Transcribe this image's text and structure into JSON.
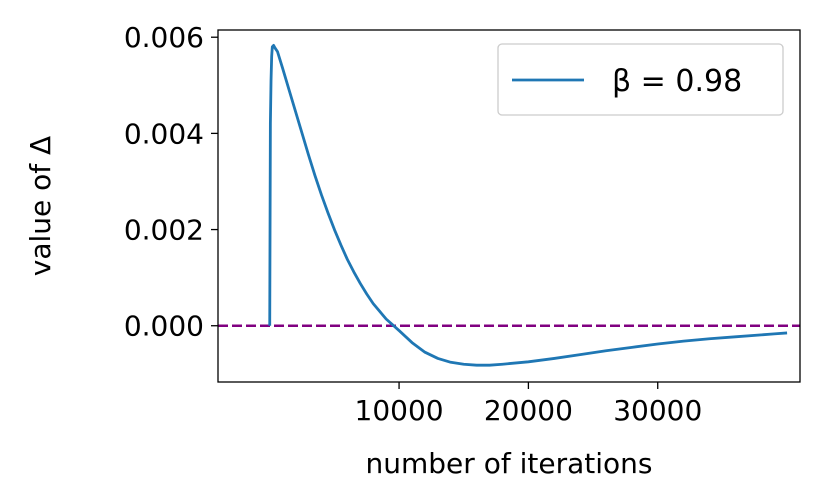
{
  "chart_data": {
    "type": "line",
    "title": "",
    "xlabel": "number of iterations",
    "ylabel": "value of Δ",
    "xlim": [
      -4000,
      41000
    ],
    "ylim": [
      -0.00117,
      0.00615
    ],
    "xticks": [
      10000,
      20000,
      30000
    ],
    "xtick_labels": [
      "10000",
      "20000",
      "30000"
    ],
    "yticks": [
      0.0,
      0.002,
      0.004,
      0.006
    ],
    "ytick_labels": [
      "0.000",
      "0.002",
      "0.004",
      "0.006"
    ],
    "grid": false,
    "legend": {
      "position": "top-right",
      "entries": [
        "β = 0.98"
      ]
    },
    "reference_lines": [
      {
        "axis": "y",
        "value": 0.0,
        "style": "dashed",
        "color": "#800080"
      }
    ],
    "series": [
      {
        "name": "β = 0.98",
        "color": "#1f77b4",
        "x": [
          0,
          50,
          100,
          150,
          200,
          300,
          400,
          600,
          1000,
          1500,
          2000,
          2500,
          3000,
          3500,
          4000,
          4500,
          5000,
          5500,
          6000,
          6500,
          7000,
          7500,
          8000,
          9000,
          10000,
          11000,
          12000,
          13000,
          14000,
          15000,
          16000,
          17000,
          18000,
          20000,
          22000,
          24000,
          26000,
          28000,
          30000,
          32000,
          34000,
          36000,
          38000,
          39000,
          40000
        ],
        "y": [
          0.0,
          0.0042,
          0.0051,
          0.0056,
          0.0058,
          0.00583,
          0.00578,
          0.0057,
          0.00535,
          0.0049,
          0.00445,
          0.004,
          0.00355,
          0.00312,
          0.00272,
          0.00235,
          0.002,
          0.00168,
          0.00138,
          0.00112,
          0.00088,
          0.00066,
          0.00046,
          0.00014,
          -0.0001,
          -0.00035,
          -0.00055,
          -0.00068,
          -0.00076,
          -0.0008,
          -0.00082,
          -0.00082,
          -0.0008,
          -0.00075,
          -0.00068,
          -0.0006,
          -0.00052,
          -0.00045,
          -0.00038,
          -0.00032,
          -0.00027,
          -0.00023,
          -0.00019,
          -0.00017,
          -0.00015
        ]
      }
    ]
  }
}
